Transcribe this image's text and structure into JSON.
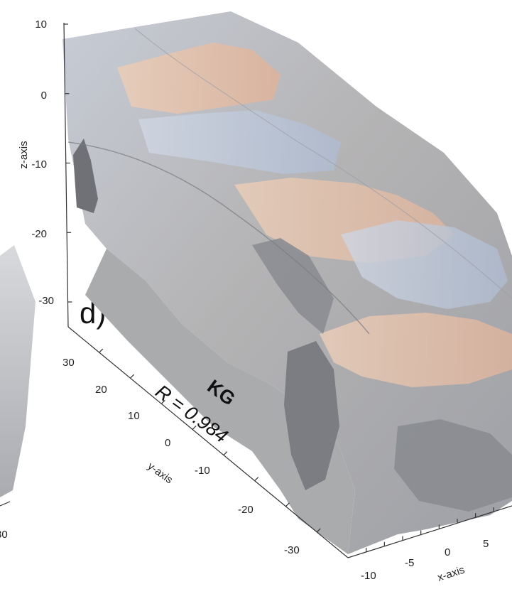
{
  "chart_data": {
    "type": "surface3d",
    "panel_label": "d)",
    "annotation": {
      "name": "KG",
      "r_text": "R = 0.984"
    },
    "axes": {
      "z": {
        "label": "z-axis",
        "ticks": [
          "10",
          "0",
          "-10",
          "-20",
          "-30"
        ]
      },
      "y": {
        "label": "y-axis",
        "ticks": [
          "30",
          "20",
          "10",
          "0",
          "-10",
          "-20",
          "-30"
        ]
      },
      "x": {
        "label": "x-axis",
        "ticks": [
          "-10",
          "-5",
          "0",
          "5"
        ]
      }
    },
    "adjacent_panel": {
      "partial_tick": "30"
    },
    "surface_colors": {
      "outer_shell": "#b9bcc2",
      "inner_warm": "#e5c2ad",
      "inner_cool": "#bcc8d9",
      "shadow": "#7d7f85"
    }
  }
}
